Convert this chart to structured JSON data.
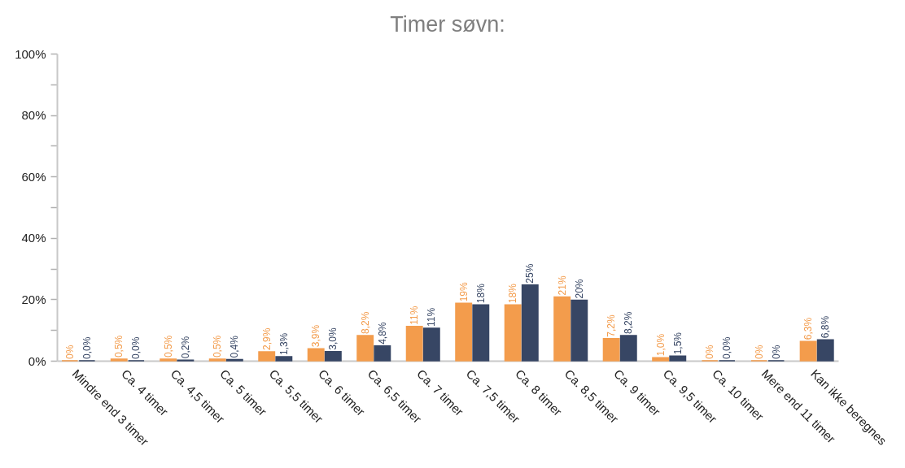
{
  "chart_data": {
    "type": "bar",
    "title": "Timer søvn:",
    "categories": [
      "Mindre end 3 timer",
      "Ca. 4 timer",
      "Ca. 4,5 timer",
      "Ca. 5 timer",
      "Ca. 5,5 timer",
      "Ca. 6 timer",
      "Ca. 6,5 timer",
      "Ca. 7 timer",
      "Ca. 7,5 timer",
      "Ca. 8 timer",
      "Ca. 8,5 timer",
      "Ca. 9 timer",
      "Ca. 9,5 timer",
      "Ca. 10 timer",
      "Mere end 11 timer",
      "Kan ikke beregnes"
    ],
    "series": [
      {
        "color": "#f39c4c",
        "values": [
          0,
          0.5,
          0.5,
          0.5,
          2.9,
          3.9,
          8.2,
          11.2,
          18.7,
          18.2,
          20.8,
          7.2,
          1.0,
          0,
          0,
          6.3
        ],
        "value_labels": [
          "0%",
          "0,5%",
          "0,5%",
          "0,5%",
          "2,9%",
          "3,9%",
          "8,2%",
          "11%",
          "19%",
          "18%",
          "21%",
          "7,2%",
          "1,0%",
          "0%",
          "0%",
          "6,3%"
        ]
      },
      {
        "color": "#374664",
        "values": [
          0,
          0,
          0.2,
          0.4,
          1.3,
          3.0,
          4.8,
          10.6,
          18.2,
          24.7,
          19.7,
          8.2,
          1.5,
          0,
          0,
          6.8
        ],
        "value_labels": [
          "0,0%",
          "0,0%",
          "0,2%",
          "0,4%",
          "1,3%",
          "3,0%",
          "4,8%",
          "11%",
          "18%",
          "25%",
          "20%",
          "8,2%",
          "1,5%",
          "0,0%",
          "0%",
          "6,8%"
        ]
      }
    ],
    "ylim": [
      0,
      100
    ],
    "yticks": [
      {
        "value": 0,
        "label": "0%"
      },
      {
        "value": 10,
        "label": null
      },
      {
        "value": 20,
        "label": "20%"
      },
      {
        "value": 30,
        "label": null
      },
      {
        "value": 40,
        "label": "40%"
      },
      {
        "value": 50,
        "label": null
      },
      {
        "value": 60,
        "label": "60%"
      },
      {
        "value": 70,
        "label": null
      },
      {
        "value": 80,
        "label": "80%"
      },
      {
        "value": 90,
        "label": null
      },
      {
        "value": 100,
        "label": "100%"
      }
    ]
  }
}
